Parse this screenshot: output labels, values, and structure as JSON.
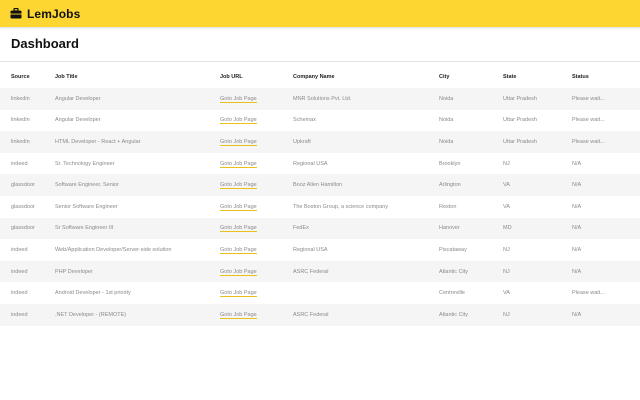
{
  "app": {
    "name": "LemJobs",
    "logo_icon": "briefcase-icon",
    "brand_color": "#fdd631"
  },
  "page": {
    "title": "Dashboard"
  },
  "table": {
    "headers": [
      "Source",
      "Job Title",
      "Job URL",
      "Company Name",
      "City",
      "State",
      "Status"
    ],
    "rows": [
      [
        "linkedin",
        "Angular Developer",
        "Goto Job Page",
        "MNR Solutions Pvt. Ltd.",
        "Noida",
        "Uttar Pradesh",
        "Please wait..."
      ],
      [
        "linkedin",
        "Angular Developer",
        "Goto Job Page",
        "Schemax",
        "Noida",
        "Uttar Pradesh",
        "Please wait..."
      ],
      [
        "linkedin",
        "HTML Developer - React + Angular",
        "Goto Job Page",
        "Upkraft",
        "Noida",
        "Uttar Pradesh",
        "Please wait..."
      ],
      [
        "indeed",
        "Sr. Technology Engineer",
        "Goto Job Page",
        "Regional USA",
        "Brooklyn",
        "NJ",
        "N/A"
      ],
      [
        "glassdoor",
        "Software Engineer, Senior",
        "Goto Job Page",
        "Booz Allen Hamilton",
        "Arlington",
        "VA",
        "N/A"
      ],
      [
        "glassdoor",
        "Senior Software Engineer",
        "Goto Job Page",
        "The Boston Group, a science company",
        "Reston",
        "VA",
        "N/A"
      ],
      [
        "glassdoor",
        "Sr Software Engineer III",
        "Goto Job Page",
        "FedEx",
        "Hanover",
        "MD",
        "N/A"
      ],
      [
        "indeed",
        "Web/Application Developer/Server-side solution",
        "Goto Job Page",
        "Regional USA",
        "Piscataway",
        "NJ",
        "N/A"
      ],
      [
        "indeed",
        "PHP Developer",
        "Goto Job Page",
        "ASRC Federal",
        "Atlantic City",
        "NJ",
        "N/A"
      ],
      [
        "indeed",
        "Android Developer - 1st priority",
        "Goto Job Page",
        "",
        "Centreville",
        "VA",
        "Please wait..."
      ],
      [
        "indeed",
        ".NET Developer - (REMOTE)",
        "Goto Job Page",
        "ASRC Federal",
        "Atlantic City",
        "NJ",
        "N/A"
      ]
    ]
  }
}
